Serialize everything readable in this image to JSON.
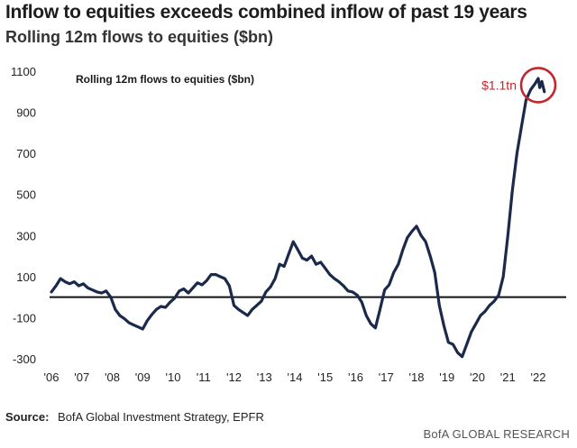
{
  "header": {
    "title": "Inflow to equities exceeds combined inflow of past 19 years",
    "subtitle": "Rolling 12m flows to equities ($bn)"
  },
  "footer": {
    "source_label": "Source:",
    "source_text": "BofA Global Investment Strategy, EPFR",
    "brand": "BofA GLOBAL RESEARCH"
  },
  "chart_data": {
    "type": "line",
    "title": "Rolling 12m flows to equities ($bn)",
    "xlabel": "",
    "ylabel": "",
    "xlim": [
      2006,
      2022.8
    ],
    "ylim": [
      -300,
      1150
    ],
    "yticks": [
      1100,
      900,
      700,
      500,
      300,
      100,
      -100,
      -300
    ],
    "xtick_labels": [
      "'06",
      "'07",
      "'08",
      "'09",
      "'10",
      "'11",
      "'12",
      "'13",
      "'14",
      "'15",
      "'16",
      "'17",
      "'18",
      "'19",
      "'20",
      "'21",
      "'22"
    ],
    "zero_line": 0,
    "grid": false,
    "line_color": "#1b2a4a",
    "annotation": {
      "text": "$1.1tn",
      "x": 2022.0,
      "y": 1050,
      "color": "#c0282d"
    },
    "series": [
      {
        "name": "Rolling 12m flows to equities ($bn)",
        "x": [
          2006.0,
          2006.15,
          2006.3,
          2006.45,
          2006.6,
          2006.75,
          2006.9,
          2007.05,
          2007.2,
          2007.35,
          2007.5,
          2007.65,
          2007.8,
          2007.95,
          2008.1,
          2008.25,
          2008.4,
          2008.55,
          2008.7,
          2008.85,
          2009.0,
          2009.15,
          2009.3,
          2009.45,
          2009.6,
          2009.75,
          2009.9,
          2010.05,
          2010.2,
          2010.35,
          2010.5,
          2010.65,
          2010.8,
          2010.95,
          2011.1,
          2011.25,
          2011.4,
          2011.55,
          2011.7,
          2011.85,
          2012.0,
          2012.15,
          2012.3,
          2012.45,
          2012.6,
          2012.75,
          2012.9,
          2013.05,
          2013.2,
          2013.35,
          2013.5,
          2013.65,
          2013.8,
          2013.95,
          2014.1,
          2014.25,
          2014.4,
          2014.55,
          2014.7,
          2014.85,
          2015.0,
          2015.15,
          2015.3,
          2015.45,
          2015.6,
          2015.75,
          2015.9,
          2016.05,
          2016.2,
          2016.35,
          2016.5,
          2016.65,
          2016.8,
          2016.95,
          2017.1,
          2017.25,
          2017.4,
          2017.55,
          2017.7,
          2017.85,
          2018.0,
          2018.15,
          2018.3,
          2018.45,
          2018.6,
          2018.75,
          2018.9,
          2019.05,
          2019.2,
          2019.35,
          2019.5,
          2019.65,
          2019.8,
          2019.95,
          2020.1,
          2020.25,
          2020.4,
          2020.55,
          2020.7,
          2020.85,
          2021.0,
          2021.15,
          2021.3,
          2021.45,
          2021.6,
          2021.75,
          2021.9,
          2022.0,
          2022.05,
          2022.12,
          2022.2
        ],
        "values": [
          25,
          55,
          90,
          75,
          65,
          75,
          55,
          65,
          45,
          35,
          25,
          20,
          30,
          0,
          -60,
          -90,
          -105,
          -125,
          -135,
          -145,
          -155,
          -115,
          -85,
          -60,
          -45,
          -50,
          -25,
          -5,
          30,
          40,
          20,
          45,
          70,
          60,
          80,
          110,
          110,
          100,
          90,
          55,
          -40,
          -60,
          -75,
          -90,
          -60,
          -40,
          -20,
          25,
          50,
          90,
          160,
          150,
          210,
          270,
          230,
          190,
          180,
          200,
          160,
          170,
          140,
          110,
          90,
          75,
          55,
          30,
          25,
          10,
          -25,
          -90,
          -130,
          -150,
          -60,
          35,
          60,
          120,
          160,
          230,
          290,
          320,
          345,
          300,
          270,
          200,
          120,
          -40,
          -140,
          -220,
          -230,
          -270,
          -290,
          -230,
          -170,
          -130,
          -90,
          -70,
          -40,
          -20,
          10,
          100,
          300,
          520,
          700,
          830,
          960,
          1010,
          1040,
          1065,
          1020,
          1050,
          1000
        ]
      }
    ]
  }
}
